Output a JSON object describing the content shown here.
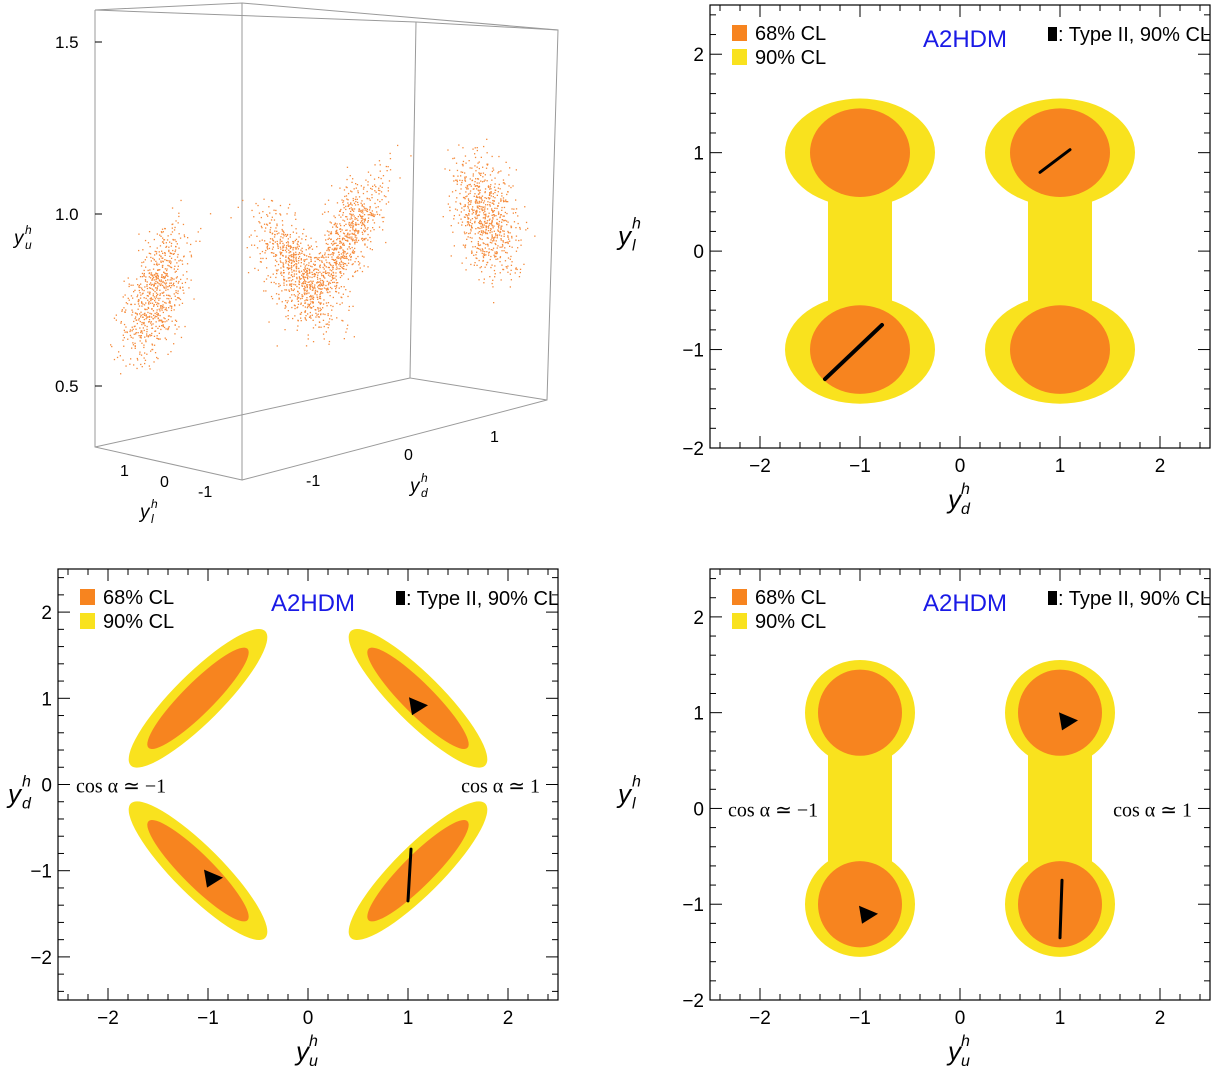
{
  "colors": {
    "cl68": "#f7841f",
    "cl90": "#f9e21e",
    "type2": "#000000",
    "scatter3d": "#f58a3a",
    "model": "#1a1ae6",
    "axis": "#000000",
    "box3d": "#9a9a9a"
  },
  "chart_data": [
    {
      "type": "scatter",
      "panel": "top-left",
      "projection": "3d",
      "x_label": "y",
      "x_label_sub": "d",
      "x_label_sup": "h",
      "y_label": "y",
      "y_label_sub": "l",
      "y_label_sup": "h",
      "z_label": "y",
      "z_label_sub": "u",
      "z_label_sup": "h",
      "x_ticks": [
        "-1",
        "0",
        "1"
      ],
      "y_ticks": [
        "1",
        "0",
        "-1"
      ],
      "z_ticks": [
        "0.5",
        "1.0",
        "1.5"
      ],
      "xlim": [
        -2,
        2
      ],
      "ylim": [
        -1.6,
        1.6
      ],
      "zlim": [
        0.3,
        1.6
      ],
      "clusters": [
        {
          "yd": -1.0,
          "yl": 1.0,
          "yu": 1.0
        },
        {
          "yd": -1.0,
          "yl": -1.0,
          "yu": 1.0
        },
        {
          "yd": 1.0,
          "yl": 1.0,
          "yu": 1.05
        },
        {
          "yd": 1.0,
          "yl": -1.0,
          "yu": 1.05
        }
      ]
    },
    {
      "type": "scatter",
      "panel": "top-right",
      "model": "A2HDM",
      "legend": [
        "68% CL",
        "90% CL"
      ],
      "legend_type2": ": Type II, 90% CL",
      "legend_position": "top-left",
      "x_label": "y",
      "x_label_sub": "d",
      "x_label_sup": "h",
      "y_label": "y",
      "y_label_sub": "l",
      "y_label_sup": "h",
      "xlim": [
        -2.5,
        2.5
      ],
      "ylim": [
        -2,
        2.5
      ],
      "x_ticks": [
        "-2",
        "-1",
        "0",
        "1",
        "2"
      ],
      "y_ticks": [
        "-2",
        "-1",
        "0",
        "1",
        "2"
      ],
      "annotations": [],
      "regions": [
        {
          "cx": -1.0,
          "cy": 1.0,
          "r90x": 0.75,
          "r90y": 0.55,
          "r68x": 0.5,
          "r68y": 0.45,
          "rot": 0
        },
        {
          "cx": 1.0,
          "cy": 1.0,
          "r90x": 0.75,
          "r90y": 0.55,
          "r68x": 0.5,
          "r68y": 0.45,
          "rot": 0
        },
        {
          "cx": -1.0,
          "cy": -1.0,
          "r90x": 0.75,
          "r90y": 0.55,
          "r68x": 0.5,
          "r68y": 0.45,
          "rot": 0
        },
        {
          "cx": 1.0,
          "cy": -1.0,
          "r90x": 0.75,
          "r90y": 0.55,
          "r68x": 0.5,
          "r68y": 0.45,
          "rot": 0
        }
      ],
      "bridges": [
        {
          "x": -1.0,
          "y1": -0.6,
          "y2": 0.6,
          "w": 0.32
        },
        {
          "x": 1.0,
          "y1": -0.6,
          "y2": 0.6,
          "w": 0.32
        }
      ],
      "type2_segments": [
        {
          "x1": 0.8,
          "y1": 0.8,
          "x2": 1.1,
          "y2": 1.03,
          "w": 3
        },
        {
          "x1": -1.35,
          "y1": -1.3,
          "x2": -0.78,
          "y2": -0.75,
          "w": 4
        }
      ],
      "type2_triangles": []
    },
    {
      "type": "scatter",
      "panel": "bottom-left",
      "model": "A2HDM",
      "legend": [
        "68% CL",
        "90% CL"
      ],
      "legend_type2": ": Type II, 90% CL",
      "legend_position": "top-left",
      "x_label": "y",
      "x_label_sub": "u",
      "x_label_sup": "h",
      "y_label": "y",
      "y_label_sub": "d",
      "y_label_sup": "h",
      "xlim": [
        -2.5,
        2.5
      ],
      "ylim": [
        -2.5,
        2.5
      ],
      "x_ticks": [
        "-2",
        "-1",
        "0",
        "1",
        "2"
      ],
      "y_ticks": [
        "-2",
        "-1",
        "0",
        "1",
        "2"
      ],
      "annotations": [
        "cos α ≃ −1",
        "cos α ≃ 1"
      ],
      "regions": [
        {
          "cx": -1.1,
          "cy": 1.0,
          "r90x": 0.95,
          "r90y": 0.28,
          "r68x": 0.7,
          "r68y": 0.18,
          "rot": -45
        },
        {
          "cx": 1.1,
          "cy": 1.0,
          "r90x": 0.95,
          "r90y": 0.28,
          "r68x": 0.7,
          "r68y": 0.18,
          "rot": 45
        },
        {
          "cx": -1.1,
          "cy": -1.0,
          "r90x": 0.95,
          "r90y": 0.28,
          "r68x": 0.7,
          "r68y": 0.18,
          "rot": 45
        },
        {
          "cx": 1.1,
          "cy": -1.0,
          "r90x": 0.95,
          "r90y": 0.28,
          "r68x": 0.7,
          "r68y": 0.18,
          "rot": -45
        }
      ],
      "bridges": [],
      "type2_segments": [
        {
          "x1": 1.0,
          "y1": -1.35,
          "x2": 1.03,
          "y2": -0.75,
          "w": 3
        }
      ],
      "type2_triangles": [
        {
          "x": 1.1,
          "y": 0.92
        },
        {
          "x": -0.95,
          "y": -1.08
        }
      ]
    },
    {
      "type": "scatter",
      "panel": "bottom-right",
      "model": "A2HDM",
      "legend": [
        "68% CL",
        "90% CL"
      ],
      "legend_type2": ": Type II, 90% CL",
      "legend_position": "top-left",
      "x_label": "y",
      "x_label_sub": "u",
      "x_label_sup": "h",
      "y_label": "y",
      "y_label_sub": "l",
      "y_label_sup": "h",
      "xlim": [
        -2.5,
        2.5
      ],
      "ylim": [
        -2,
        2.5
      ],
      "x_ticks": [
        "-2",
        "-1",
        "0",
        "1",
        "2"
      ],
      "y_ticks": [
        "-2",
        "-1",
        "0",
        "1",
        "2"
      ],
      "annotations": [
        "cos α ≃ −1",
        "cos α ≃ 1"
      ],
      "regions": [
        {
          "cx": -1.0,
          "cy": 1.0,
          "r90x": 0.55,
          "r90y": 0.55,
          "r68x": 0.42,
          "r68y": 0.45,
          "rot": 0
        },
        {
          "cx": 1.0,
          "cy": 1.0,
          "r90x": 0.55,
          "r90y": 0.55,
          "r68x": 0.42,
          "r68y": 0.45,
          "rot": 0
        },
        {
          "cx": -1.0,
          "cy": -1.0,
          "r90x": 0.55,
          "r90y": 0.55,
          "r68x": 0.42,
          "r68y": 0.45,
          "rot": 0
        },
        {
          "cx": 1.0,
          "cy": -1.0,
          "r90x": 0.55,
          "r90y": 0.55,
          "r68x": 0.42,
          "r68y": 0.45,
          "rot": 0
        }
      ],
      "bridges": [
        {
          "x": -1.0,
          "y1": -0.6,
          "y2": 0.6,
          "w": 0.32
        },
        {
          "x": 1.0,
          "y1": -0.6,
          "y2": 0.6,
          "w": 0.32
        }
      ],
      "type2_segments": [
        {
          "x1": 1.0,
          "y1": -1.35,
          "x2": 1.02,
          "y2": -0.75,
          "w": 3
        }
      ],
      "type2_triangles": [
        {
          "x": 1.08,
          "y": 0.92
        },
        {
          "x": -0.92,
          "y": -1.1
        }
      ]
    }
  ]
}
